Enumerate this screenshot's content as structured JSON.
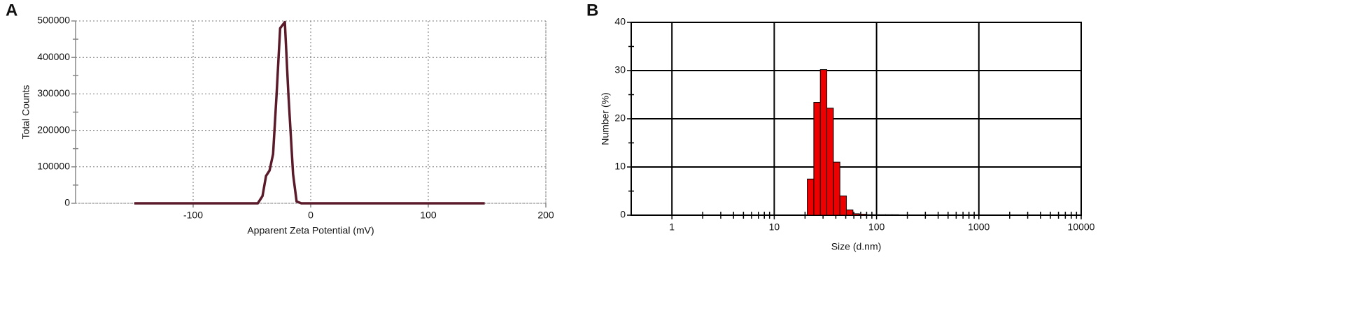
{
  "chart_data": [
    {
      "type": "line",
      "panel": "A",
      "xlabel": "Apparent Zeta Potential (mV)",
      "ylabel": "Total Counts",
      "x": [
        -150,
        -45,
        -41,
        -38,
        -35,
        -32,
        -29,
        -26,
        -22,
        -19,
        -15,
        -12,
        -8,
        148
      ],
      "values": [
        0,
        0,
        20000,
        75000,
        90000,
        135000,
        300000,
        480000,
        497000,
        300000,
        80000,
        5000,
        0,
        0
      ],
      "color": "#5a1a2a",
      "xlim": [
        -200,
        200
      ],
      "xticks": [
        -100,
        0,
        100,
        200
      ],
      "ylim": [
        0,
        500000
      ],
      "yticks": [
        0,
        100000,
        200000,
        300000,
        400000,
        500000
      ],
      "yminorticks": [
        50000,
        150000,
        250000,
        350000,
        450000
      ],
      "grid": true
    },
    {
      "type": "histogram",
      "panel": "B",
      "xlabel": "Size (d.nm)",
      "ylabel": "Number (%)",
      "bins": [
        21.04,
        24.36,
        28.21,
        32.67,
        37.84,
        43.82,
        50.75,
        58.77,
        68.06,
        78.82,
        91.28,
        105.7,
        122.4,
        141.8,
        164.2
      ],
      "values": [
        7.5,
        23.4,
        30.2,
        22.2,
        11.0,
        4.0,
        1.1,
        0.3,
        0.2,
        0.1,
        0.1,
        0.1,
        0.1,
        0.1
      ],
      "color": "#ee0000",
      "xscale": "log",
      "xlim": [
        0.4,
        10000
      ],
      "xticks": [
        1,
        10,
        100,
        1000,
        10000
      ],
      "xminorticks": [
        2,
        3,
        4,
        5,
        6,
        7,
        8,
        9,
        20,
        30,
        40,
        50,
        60,
        70,
        80,
        90,
        200,
        300,
        400,
        500,
        600,
        700,
        800,
        900,
        2000,
        3000,
        4000,
        5000,
        6000,
        7000,
        8000,
        9000
      ],
      "ylim": [
        0,
        40
      ],
      "yticks": [
        0,
        10,
        20,
        30,
        40
      ],
      "yminorticks": [
        5,
        15,
        25,
        35
      ],
      "grid": true
    }
  ]
}
